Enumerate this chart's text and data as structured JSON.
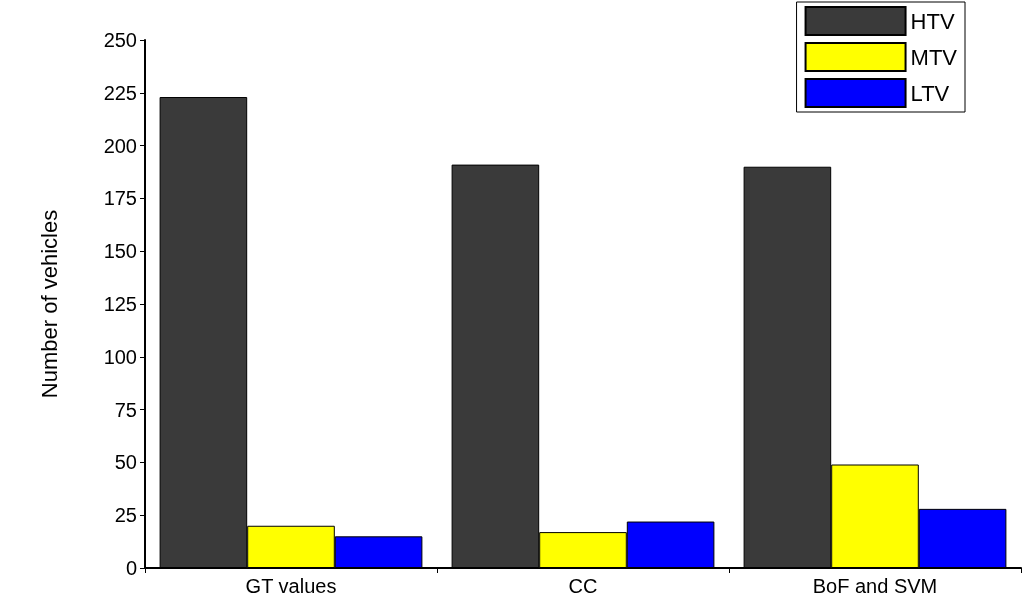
{
  "chart_data": {
    "type": "bar",
    "ylabel": "Number of vehicles",
    "categories": [
      "GT values",
      "CC",
      "BoF and SVM"
    ],
    "series": [
      {
        "name": "HTV",
        "color": "#3a3a3a",
        "values": [
          223,
          191,
          190
        ]
      },
      {
        "name": "MTV",
        "color": "#ffff00",
        "values": [
          20,
          17,
          49
        ]
      },
      {
        "name": "LTV",
        "color": "#0000ff",
        "values": [
          15,
          22,
          28
        ]
      }
    ],
    "ylim": [
      0,
      250
    ],
    "yticks": [
      0,
      25,
      50,
      75,
      100,
      125,
      150,
      175,
      200,
      225,
      250
    ],
    "grid": false,
    "legend": "top right"
  }
}
